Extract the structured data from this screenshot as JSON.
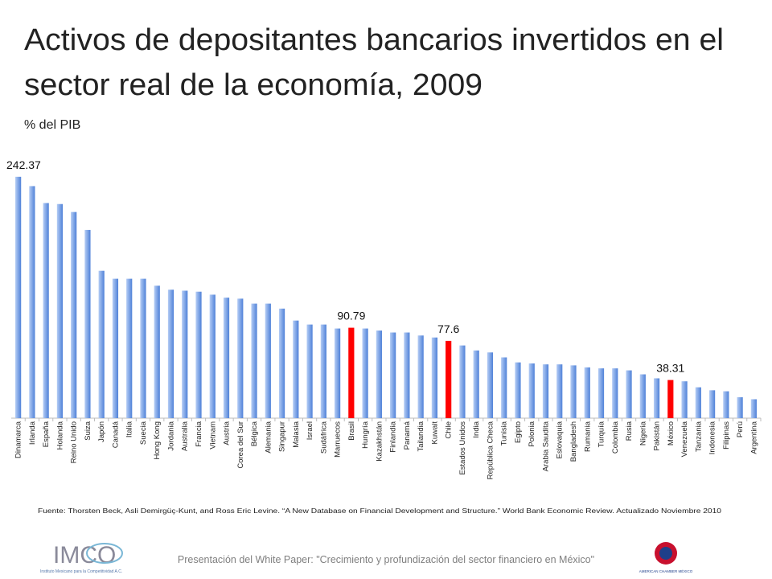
{
  "chart_data": {
    "type": "bar",
    "title_lines": [
      "Activos de depositantes bancarios invertidos en el",
      "sector real de la economía, 2009"
    ],
    "subtitle": "% del PIB",
    "categories": [
      "Dinamarca",
      "Irlanda",
      "España",
      "Holanda",
      "Reino Unido",
      "Suiza",
      "Japón",
      "Canadá",
      "Italia",
      "Suecia",
      "Hong Kong",
      "Jordania",
      "Australia",
      "Francia",
      "Vietnam",
      "Austria",
      "Corea del Sur",
      "Bélgica",
      "Alemania",
      "Singapur",
      "Malasia",
      "Israel",
      "Sudáfrica",
      "Marruecos",
      "Brasil",
      "Hungría",
      "Kazakhstán",
      "Finlandia",
      "Panamá",
      "Tailandia",
      "Kuwait",
      "Chile",
      "Estados Unidos",
      "India",
      "República Checa",
      "Tunisia",
      "Egipto",
      "Polonia",
      "Arabia Saudita",
      "Eslovaquia",
      "Bangladesh",
      "Rumania",
      "Turquía",
      "Colombia",
      "Rusia",
      "Nigeria",
      "Pakistán",
      "México",
      "Venezuela",
      "Tanzania",
      "Indonesia",
      "Filipinas",
      "Perú",
      "Argentina"
    ],
    "values": [
      242.37,
      233,
      216,
      215,
      207,
      189,
      148,
      140,
      140,
      140,
      133,
      129,
      128,
      127,
      124,
      121,
      120,
      115,
      115,
      110,
      98,
      94,
      94,
      90,
      90.79,
      90,
      88,
      86,
      86,
      83,
      81,
      77.6,
      73,
      68,
      66,
      61,
      56,
      55,
      54,
      54,
      53,
      51,
      50,
      50,
      48,
      44,
      40,
      38.31,
      37,
      31,
      28,
      27,
      21,
      19
    ],
    "value_labels": [
      "242.37",
      null,
      null,
      null,
      null,
      null,
      null,
      null,
      null,
      null,
      null,
      null,
      null,
      null,
      null,
      null,
      null,
      null,
      null,
      null,
      null,
      null,
      null,
      null,
      "90.79",
      null,
      null,
      null,
      null,
      null,
      null,
      "77.6",
      null,
      null,
      null,
      null,
      null,
      null,
      null,
      null,
      null,
      null,
      null,
      null,
      null,
      null,
      null,
      "38.31",
      null,
      null,
      null,
      null,
      null,
      null
    ],
    "colors": [
      "#4f81d8",
      "#4f81d8",
      "#4f81d8",
      "#4f81d8",
      "#4f81d8",
      "#4f81d8",
      "#4f81d8",
      "#4f81d8",
      "#4f81d8",
      "#4f81d8",
      "#4f81d8",
      "#4f81d8",
      "#4f81d8",
      "#4f81d8",
      "#4f81d8",
      "#4f81d8",
      "#4f81d8",
      "#4f81d8",
      "#4f81d8",
      "#4f81d8",
      "#4f81d8",
      "#4f81d8",
      "#4f81d8",
      "#4f81d8",
      "#ff0000",
      "#4f81d8",
      "#4f81d8",
      "#4f81d8",
      "#4f81d8",
      "#4f81d8",
      "#4f81d8",
      "#ff0000",
      "#4f81d8",
      "#4f81d8",
      "#4f81d8",
      "#4f81d8",
      "#4f81d8",
      "#4f81d8",
      "#4f81d8",
      "#4f81d8",
      "#4f81d8",
      "#4f81d8",
      "#4f81d8",
      "#4f81d8",
      "#4f81d8",
      "#4f81d8",
      "#4f81d8",
      "#ff0000",
      "#4f81d8",
      "#4f81d8",
      "#4f81d8",
      "#4f81d8",
      "#4f81d8",
      "#4f81d8"
    ],
    "ylim": [
      0,
      260
    ],
    "source": "Fuente: Thorsten Beck, Asli Demirgüç-Kunt, and Ross Eric Levine. “A New Database on Financial Development and Structure.” World Bank Economic Review.  Actualizado Noviembre 2010",
    "footer": "Presentación del White Paper: \"Crecimiento y profundización del sector financiero en México\"",
    "logo_left": {
      "name": "IMCO",
      "caption": "Instituto Mexicano para la Competitividad A.C."
    },
    "logo_right": {
      "caption": "AMERICAN CHAMBER MÉXICO"
    }
  }
}
